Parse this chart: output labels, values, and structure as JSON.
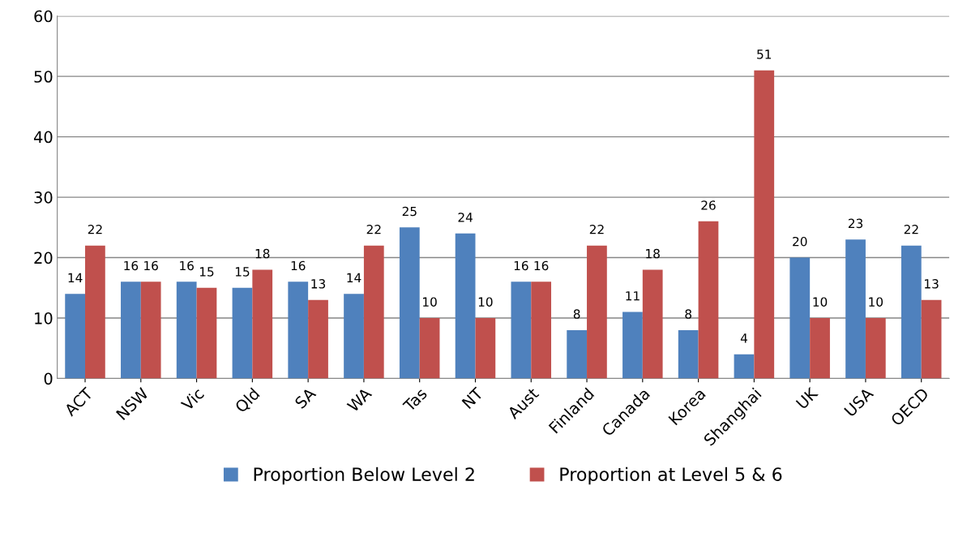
{
  "chart_data": {
    "type": "bar",
    "categories": [
      "ACT",
      "NSW",
      "Vic",
      "Qld",
      "SA",
      "WA",
      "Tas",
      "NT",
      "Aust",
      "Finland",
      "Canada",
      "Korea",
      "Shanghai",
      "UK",
      "USA",
      "OECD"
    ],
    "series": [
      {
        "name": "Proportion Below Level 2",
        "color": "#4f81bd",
        "values": [
          14,
          16,
          16,
          15,
          16,
          14,
          25,
          24,
          16,
          8,
          11,
          8,
          4,
          20,
          23,
          22
        ]
      },
      {
        "name": "Proportion at Level 5 & 6",
        "color": "#c0504d",
        "values": [
          22,
          16,
          15,
          18,
          13,
          22,
          10,
          10,
          16,
          22,
          18,
          26,
          51,
          10,
          10,
          13
        ]
      }
    ],
    "ylim": [
      0,
      60
    ],
    "yticks": [
      0,
      10,
      20,
      30,
      40,
      50,
      60
    ],
    "grid": "y",
    "legend": "bottom",
    "data_labels": true
  }
}
